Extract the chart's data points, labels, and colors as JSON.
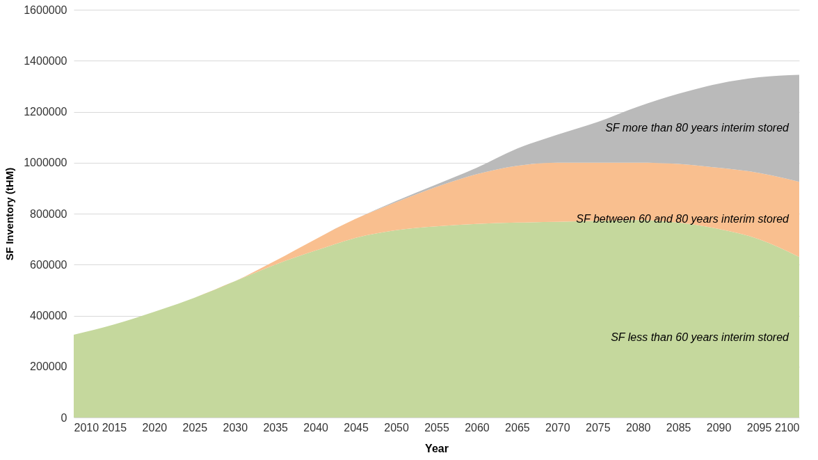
{
  "chart_data": {
    "type": "area",
    "stacked": true,
    "xlabel": "Year",
    "ylabel": "SF Inventory (tHM)",
    "x": [
      2010,
      2015,
      2020,
      2025,
      2030,
      2035,
      2040,
      2045,
      2050,
      2055,
      2060,
      2065,
      2070,
      2075,
      2080,
      2085,
      2090,
      2095,
      2100
    ],
    "series": [
      {
        "name": "SF less than 60 years interim stored",
        "color": "#c5d89d",
        "values": [
          325000,
          365000,
          415000,
          470000,
          535000,
          600000,
          655000,
          705000,
          735000,
          750000,
          760000,
          765000,
          768000,
          772000,
          775000,
          765000,
          740000,
          700000,
          630000
        ]
      },
      {
        "name": "SF between 60 and 80 years interim stored",
        "color": "#f9bf8f",
        "values": [
          0,
          0,
          0,
          0,
          0,
          15000,
          45000,
          75000,
          110000,
          155000,
          195000,
          223000,
          232000,
          228000,
          225000,
          230000,
          240000,
          260000,
          295000
        ]
      },
      {
        "name": "SF more than 80 years interim stored",
        "color": "#bababa",
        "values": [
          0,
          0,
          0,
          0,
          0,
          0,
          0,
          0,
          5000,
          10000,
          25000,
          67000,
          110000,
          160000,
          220000,
          275000,
          330000,
          375000,
          420000
        ]
      }
    ],
    "xlim": [
      2010,
      2100
    ],
    "xticks": [
      2010,
      2015,
      2020,
      2025,
      2030,
      2035,
      2040,
      2045,
      2050,
      2055,
      2060,
      2065,
      2070,
      2075,
      2080,
      2085,
      2090,
      2095,
      2100
    ],
    "ylim": [
      0,
      1600000
    ],
    "yticks": [
      0,
      200000,
      400000,
      600000,
      800000,
      1000000,
      1200000,
      1400000,
      1600000
    ],
    "grid": "y"
  }
}
